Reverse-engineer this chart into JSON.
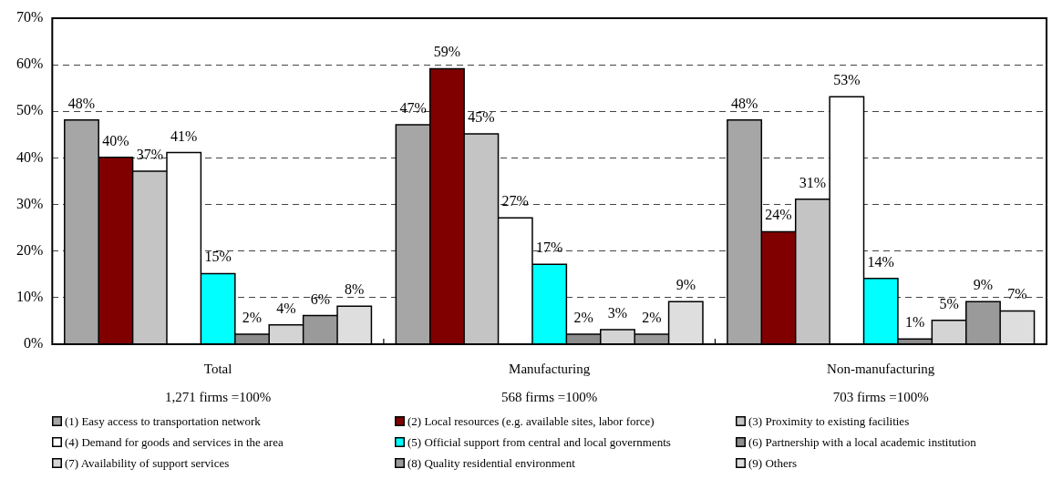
{
  "chart_data": {
    "type": "bar",
    "categories": [
      "Total\n1,271 firms =100%",
      "Manufacturing\n568 firms =100%",
      "Non-manufacturing\n703 firms =100%"
    ],
    "series": [
      {
        "name": "(1) Easy access to transportation network",
        "color": "#a6a6a6",
        "values": [
          48,
          47,
          48
        ],
        "value_labels": [
          "48%",
          "47%",
          "48%"
        ]
      },
      {
        "name": "(2) Local resources (e.g. available sites, labor force)",
        "color": "#800000",
        "values": [
          40,
          59,
          24
        ],
        "value_labels": [
          "40%",
          "59%",
          "24%"
        ]
      },
      {
        "name": "(3) Proximity to existing facilities",
        "color": "#c4c4c4",
        "values": [
          37,
          45,
          31
        ],
        "value_labels": [
          "37%",
          "45%",
          "31%"
        ]
      },
      {
        "name": "(4) Demand for goods and services in the area",
        "color": "#ffffff",
        "values": [
          41,
          27,
          53
        ],
        "value_labels": [
          "41%",
          "27%",
          "53%"
        ]
      },
      {
        "name": "(5) Official support from central and local governments",
        "color": "#00ffff",
        "values": [
          15,
          17,
          14
        ],
        "value_labels": [
          "15%",
          "17%",
          "14%"
        ]
      },
      {
        "name": "(6) Partnership with a local academic institution",
        "color": "#8c8c8c",
        "values": [
          2,
          2,
          1
        ],
        "value_labels": [
          "2%",
          "2%",
          "1%"
        ]
      },
      {
        "name": "(7) Availability of support services",
        "color": "#d4d4d4",
        "values": [
          4,
          3,
          5
        ],
        "value_labels": [
          "4%",
          "3%",
          "5%"
        ]
      },
      {
        "name": "(8) Quality residential environment",
        "color": "#9a9a9a",
        "values": [
          6,
          2,
          9
        ],
        "value_labels": [
          "6%",
          "2%",
          "9%"
        ]
      },
      {
        "name": "(9) Others",
        "color": "#dedede",
        "values": [
          8,
          9,
          7
        ],
        "value_labels": [
          "8%",
          "9%",
          "7%"
        ]
      }
    ],
    "ylim": [
      0,
      70
    ],
    "yticks": [
      {
        "value": 0,
        "label": "0%"
      },
      {
        "value": 10,
        "label": "10%"
      },
      {
        "value": 20,
        "label": "20%"
      },
      {
        "value": 30,
        "label": "30%"
      },
      {
        "value": 40,
        "label": "40%"
      },
      {
        "value": 50,
        "label": "50%"
      },
      {
        "value": 60,
        "label": "60%"
      },
      {
        "value": 70,
        "label": "70%"
      }
    ],
    "grid": "y",
    "legend": "bottom"
  }
}
